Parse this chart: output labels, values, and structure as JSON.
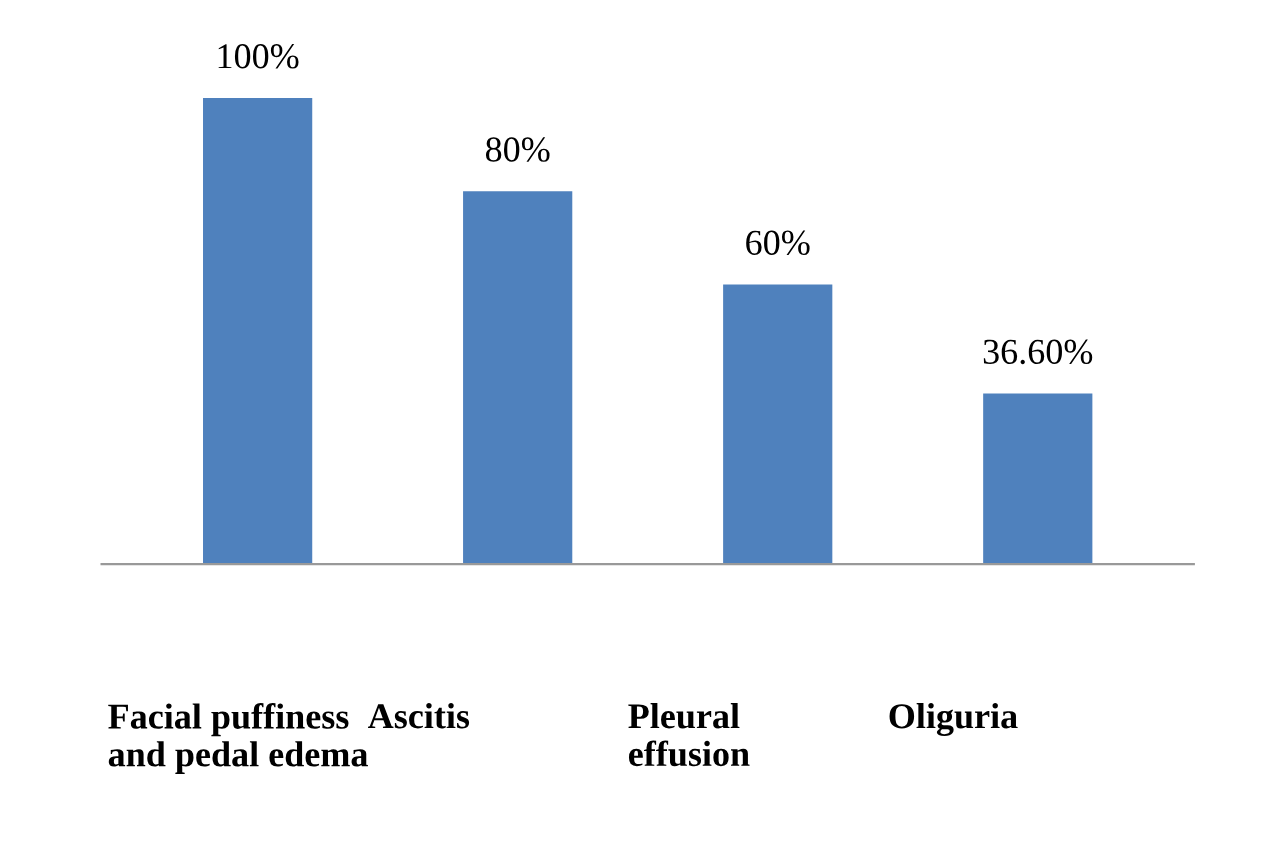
{
  "chart_data": {
    "type": "bar",
    "categories": [
      "Facial puffiness\nand pedal edema",
      "Ascitis",
      "Pleural\neffusion",
      "Oliguria"
    ],
    "values": [
      100,
      80,
      60,
      36.6
    ],
    "value_labels": [
      "100%",
      "80%",
      "60%",
      "36.60%"
    ],
    "color": "#4f81bd",
    "grid": false,
    "legend": false
  }
}
